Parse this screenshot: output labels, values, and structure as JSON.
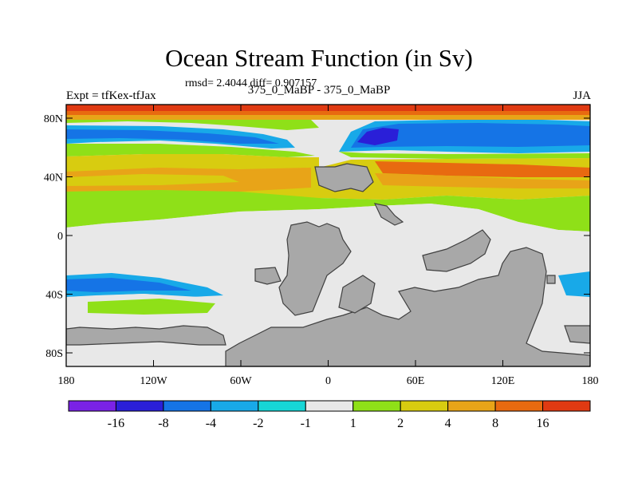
{
  "header": {
    "title": "Ocean Stream Function (in Sv)",
    "stats": "rmsd= 2.4044 diff= 0.907157",
    "experiment": "Expt = tfKex-tfJax",
    "comparison": "375_0_MaBP - 375_0_MaBP",
    "season": "JJA"
  },
  "map": {
    "x_ticks": [
      "180",
      "120W",
      "60W",
      "0",
      "60E",
      "120E",
      "180"
    ],
    "y_ticks": [
      "80N",
      "40N",
      "0",
      "40S",
      "80S"
    ]
  },
  "colorbar": {
    "labels": [
      "-16",
      "-8",
      "-4",
      "-2",
      "-1",
      "1",
      "2",
      "4",
      "8",
      "16"
    ],
    "colors": [
      "#7a22e6",
      "#2a1fd8",
      "#1574e6",
      "#18a9e8",
      "#16d6d6",
      "#e8e8e8",
      "#8fe018",
      "#d8cc10",
      "#e8a418",
      "#e86a10",
      "#e03a12"
    ]
  },
  "colors": {
    "land": "#a8a8a8",
    "coast": "#404040",
    "white_band": "#e8e8e8"
  }
}
